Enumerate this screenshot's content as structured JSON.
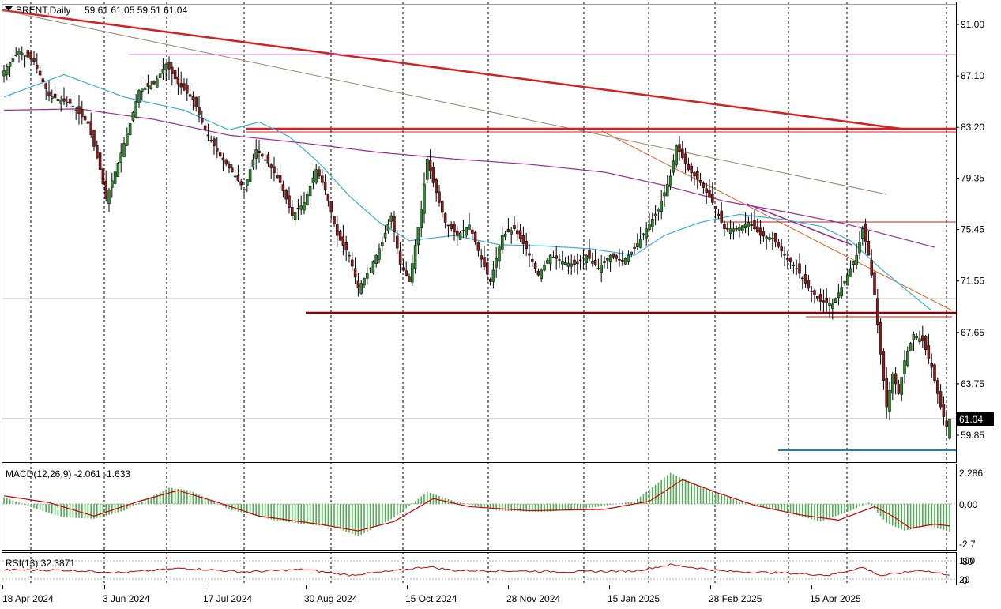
{
  "header": {
    "symbol_label": "BRENT,Daily",
    "ohlc_text": "59.61 61.05 59.51 61.04"
  },
  "price_panel": {
    "current_price_label": "61.04"
  },
  "macd_panel": {
    "label": "MACD(12,26,9) -2.061 -1.633",
    "tick_labels": [
      "2.286",
      "0.00",
      "-2.7"
    ]
  },
  "rsi_panel": {
    "label": "RSI(13) 32.3871",
    "tick_labels": [
      "100",
      "80",
      "20",
      "0"
    ]
  },
  "colors": {
    "bull_candle": "#2e8b2e",
    "bear_candle": "#8b1a1a",
    "ma_fast": "#3aaed8",
    "ma_slow": "#9b2c8f",
    "resistance_line": "#d42020",
    "support_line": "#8b0000",
    "macd_histogram": "#4caf50",
    "macd_signal": "#cc0000",
    "rsi_line": "#cc0000",
    "low_line": "#1f7fbf",
    "sand_line": "#a0826d",
    "orange_line": "#e06020",
    "pink_line": "#d070c8"
  },
  "chart_data": {
    "type": "candlestick",
    "symbol": "BRENT",
    "timeframe": "Daily",
    "x_tick_labels": [
      "18 Apr 2024",
      "3 Jun 2024",
      "17 Jul 2024",
      "30 Aug 2024",
      "15 Oct 2024",
      "28 Nov 2024",
      "15 Jan 2025",
      "28 Feb 2025",
      "15 Apr 2025"
    ],
    "y_tick_labels": [
      "91.00",
      "87.10",
      "83.20",
      "79.35",
      "75.45",
      "71.55",
      "67.65",
      "63.75",
      "59.85"
    ],
    "ylim": [
      57.5,
      92.6
    ],
    "last_bar": {
      "open": 59.61,
      "high": 61.05,
      "low": 59.51,
      "close": 61.04
    },
    "price_path": [
      [
        0,
        87.5
      ],
      [
        5,
        89.0
      ],
      [
        10,
        88.2
      ],
      [
        15,
        85.6
      ],
      [
        22,
        85.0
      ],
      [
        28,
        83.5
      ],
      [
        32,
        80.0
      ],
      [
        34,
        77.8
      ],
      [
        38,
        80.5
      ],
      [
        42,
        83.5
      ],
      [
        45,
        86.0
      ],
      [
        50,
        86.5
      ],
      [
        54,
        88.0
      ],
      [
        58,
        86.5
      ],
      [
        63,
        85.3
      ],
      [
        67,
        83.0
      ],
      [
        72,
        81.0
      ],
      [
        77,
        79.5
      ],
      [
        80,
        78.5
      ],
      [
        84,
        81.5
      ],
      [
        88,
        80.5
      ],
      [
        92,
        79.0
      ],
      [
        96,
        76.5
      ],
      [
        100,
        77.5
      ],
      [
        104,
        80.0
      ],
      [
        107,
        78.5
      ],
      [
        111,
        75.0
      ],
      [
        115,
        73.5
      ],
      [
        118,
        71.0
      ],
      [
        122,
        72.5
      ],
      [
        126,
        74.5
      ],
      [
        129,
        76.5
      ],
      [
        132,
        72.8
      ],
      [
        135,
        71.5
      ],
      [
        139,
        77.0
      ],
      [
        141,
        80.8
      ],
      [
        143,
        79.0
      ],
      [
        147,
        76.0
      ],
      [
        151,
        75.0
      ],
      [
        155,
        75.8
      ],
      [
        159,
        73.2
      ],
      [
        162,
        71.5
      ],
      [
        166,
        75.0
      ],
      [
        170,
        75.5
      ],
      [
        174,
        74.0
      ],
      [
        178,
        72.0
      ],
      [
        182,
        73.5
      ],
      [
        186,
        73.0
      ],
      [
        190,
        72.8
      ],
      [
        194,
        73.5
      ],
      [
        198,
        72.5
      ],
      [
        202,
        73.5
      ],
      [
        206,
        73.0
      ],
      [
        210,
        74.0
      ],
      [
        214,
        75.5
      ],
      [
        218,
        77.0
      ],
      [
        222,
        79.5
      ],
      [
        224,
        81.8
      ],
      [
        228,
        80.0
      ],
      [
        232,
        79.0
      ],
      [
        236,
        77.5
      ],
      [
        240,
        75.5
      ],
      [
        244,
        75.5
      ],
      [
        248,
        76.0
      ],
      [
        252,
        75.0
      ],
      [
        256,
        74.8
      ],
      [
        260,
        73.5
      ],
      [
        264,
        72.5
      ],
      [
        268,
        71.0
      ],
      [
        272,
        70.0
      ],
      [
        276,
        69.8
      ],
      [
        280,
        71.5
      ],
      [
        284,
        73.5
      ],
      [
        286,
        75.5
      ],
      [
        288,
        73.5
      ],
      [
        290,
        70.5
      ],
      [
        292,
        66.0
      ],
      [
        294,
        62.0
      ],
      [
        296,
        64.5
      ],
      [
        298,
        63.0
      ],
      [
        300,
        65.5
      ],
      [
        303,
        67.5
      ],
      [
        306,
        67.0
      ],
      [
        309,
        65.0
      ],
      [
        312,
        62.0
      ],
      [
        314,
        60.5
      ],
      [
        315,
        61.0
      ]
    ],
    "indicators": {
      "ma_fast_path": [
        [
          0,
          85.5
        ],
        [
          20,
          87.2
        ],
        [
          40,
          85.5
        ],
        [
          60,
          84.5
        ],
        [
          75,
          83.0
        ],
        [
          85,
          83.6
        ],
        [
          95,
          82.5
        ],
        [
          105,
          80.5
        ],
        [
          115,
          78.0
        ],
        [
          125,
          76.0
        ],
        [
          135,
          74.6
        ],
        [
          150,
          75.0
        ],
        [
          165,
          74.3
        ],
        [
          180,
          74.2
        ],
        [
          195,
          74.0
        ],
        [
          210,
          73.5
        ],
        [
          220,
          75.0
        ],
        [
          232,
          76.0
        ],
        [
          245,
          76.6
        ],
        [
          260,
          76.2
        ],
        [
          272,
          75.7
        ],
        [
          282,
          74.6
        ],
        [
          292,
          72.5
        ],
        [
          302,
          70.6
        ],
        [
          309,
          69.3
        ]
      ],
      "ma_slow_path": [
        [
          0,
          84.5
        ],
        [
          25,
          84.6
        ],
        [
          50,
          83.8
        ],
        [
          75,
          82.6
        ],
        [
          100,
          82.0
        ],
        [
          125,
          81.3
        ],
        [
          150,
          80.8
        ],
        [
          175,
          80.4
        ],
        [
          200,
          79.8
        ],
        [
          220,
          78.8
        ],
        [
          240,
          77.6
        ],
        [
          260,
          76.8
        ],
        [
          280,
          75.9
        ],
        [
          295,
          75.0
        ],
        [
          310,
          74.1
        ]
      ],
      "rsi_current": 32.3871,
      "rsi_levels": [
        80,
        20
      ],
      "rsi_path": [
        [
          0,
          50
        ],
        [
          20,
          49
        ],
        [
          40,
          40
        ],
        [
          60,
          57
        ],
        [
          80,
          42
        ],
        [
          100,
          52
        ],
        [
          115,
          30
        ],
        [
          130,
          46
        ],
        [
          141,
          63
        ],
        [
          150,
          48
        ],
        [
          170,
          46
        ],
        [
          190,
          43
        ],
        [
          210,
          46
        ],
        [
          222,
          70
        ],
        [
          240,
          45
        ],
        [
          260,
          38
        ],
        [
          275,
          30
        ],
        [
          286,
          60
        ],
        [
          292,
          28
        ],
        [
          300,
          40
        ],
        [
          305,
          50
        ],
        [
          312,
          36
        ],
        [
          315,
          32.4
        ]
      ],
      "macd_main": -2.061,
      "macd_signal": -1.633,
      "macd_main_path": [
        [
          0,
          0.5
        ],
        [
          10,
          -0.3
        ],
        [
          20,
          -1.0
        ],
        [
          30,
          -1.1
        ],
        [
          40,
          -0.5
        ],
        [
          55,
          1.2
        ],
        [
          62,
          1.0
        ],
        [
          75,
          -0.4
        ],
        [
          90,
          -1.2
        ],
        [
          100,
          -1.5
        ],
        [
          110,
          -1.7
        ],
        [
          118,
          -2.4
        ],
        [
          130,
          -1.0
        ],
        [
          141,
          0.9
        ],
        [
          150,
          0.2
        ],
        [
          165,
          -0.5
        ],
        [
          180,
          -0.6
        ],
        [
          195,
          -0.3
        ],
        [
          210,
          0.2
        ],
        [
          222,
          2.3
        ],
        [
          235,
          1.0
        ],
        [
          245,
          0.2
        ],
        [
          260,
          -0.6
        ],
        [
          272,
          -1.3
        ],
        [
          282,
          -0.5
        ],
        [
          288,
          0.1
        ],
        [
          294,
          -1.4
        ],
        [
          300,
          -2.0
        ],
        [
          308,
          -1.6
        ],
        [
          315,
          -2.061
        ]
      ],
      "macd_signal_path": [
        [
          0,
          0.6
        ],
        [
          15,
          0.1
        ],
        [
          30,
          -0.9
        ],
        [
          45,
          0.2
        ],
        [
          58,
          1.0
        ],
        [
          70,
          0.2
        ],
        [
          85,
          -0.9
        ],
        [
          105,
          -1.5
        ],
        [
          118,
          -2.0
        ],
        [
          130,
          -1.3
        ],
        [
          143,
          0.4
        ],
        [
          155,
          -0.2
        ],
        [
          175,
          -0.5
        ],
        [
          200,
          -0.4
        ],
        [
          215,
          0.2
        ],
        [
          226,
          1.8
        ],
        [
          238,
          0.8
        ],
        [
          250,
          -0.1
        ],
        [
          265,
          -0.8
        ],
        [
          278,
          -1.2
        ],
        [
          290,
          -0.2
        ],
        [
          296,
          -0.9
        ],
        [
          302,
          -1.8
        ],
        [
          310,
          -1.5
        ],
        [
          315,
          -1.633
        ]
      ]
    }
  }
}
